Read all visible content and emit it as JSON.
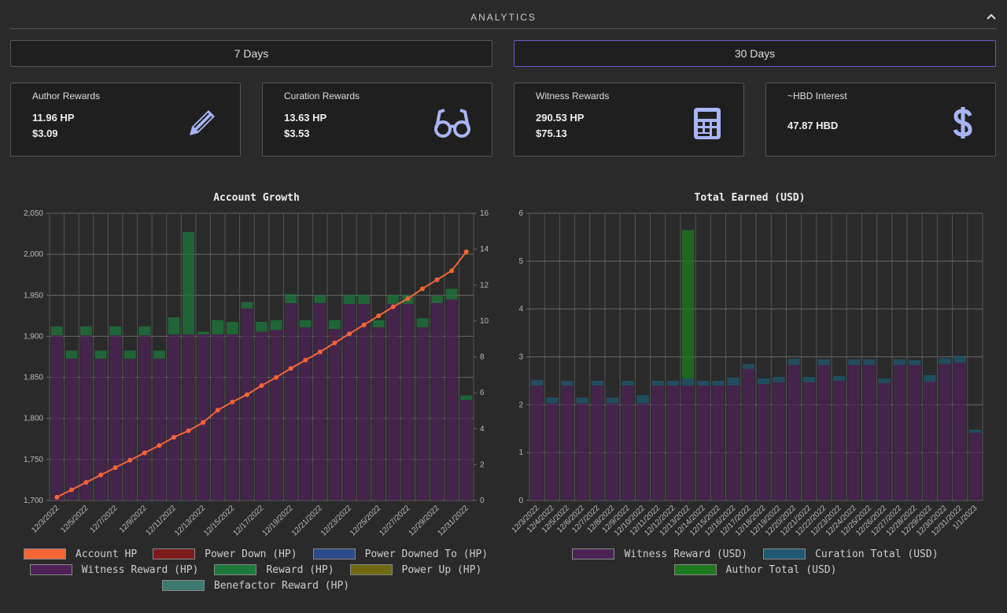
{
  "header": {
    "title": "ANALYTICS"
  },
  "buttons": [
    "7 Days",
    "30 Days"
  ],
  "cards": [
    {
      "label": "Author Rewards",
      "lines": [
        "11.96 HP",
        "$3.09"
      ]
    },
    {
      "label": "Curation Rewards",
      "lines": [
        "13.63 HP",
        "$3.53"
      ]
    },
    {
      "label": "Witness Rewards",
      "lines": [
        "290.53 HP",
        "$75.13"
      ]
    },
    {
      "label": "~HBD Interest",
      "lines": [
        "47.87 HBD"
      ]
    }
  ],
  "chart_data": [
    {
      "type": "combo",
      "title": "Account Growth",
      "stacked": true,
      "grid": true,
      "categories": [
        "12/3/2022",
        null,
        "12/5/2022",
        null,
        "12/7/2022",
        null,
        "12/9/2022",
        null,
        "12/11/2022",
        null,
        "12/13/2022",
        null,
        "12/15/2022",
        null,
        "12/17/2022",
        null,
        "12/19/2022",
        null,
        "12/21/2022",
        null,
        "12/23/2022",
        null,
        "12/25/2022",
        null,
        "12/27/2022",
        null,
        "12/29/2022",
        null,
        "12/31/2022"
      ],
      "ylim": [
        1700,
        2050
      ],
      "yticks": [
        {
          "value": 1700,
          "label": "1,700"
        },
        {
          "value": 1750,
          "label": "1,750"
        },
        {
          "value": 1800,
          "label": "1,800"
        },
        {
          "value": 1850,
          "label": "1,850"
        },
        {
          "value": 1900,
          "label": "1,900"
        },
        {
          "value": 1950,
          "label": "1,950"
        },
        {
          "value": 2000,
          "label": "2,000"
        },
        {
          "value": 2050,
          "label": "2,050"
        }
      ],
      "y2lim": [
        0,
        16
      ],
      "y2ticks": [
        0,
        2,
        4,
        6,
        8,
        10,
        12,
        14,
        16
      ],
      "series": [
        {
          "name": "Account HP",
          "type": "line",
          "color": "#f26535",
          "values": [
            1704,
            1713,
            1722,
            1731,
            1740,
            1749,
            1758,
            1767,
            1777,
            1785,
            1795,
            1810,
            1820,
            1829,
            1840,
            1850,
            1861,
            1871,
            1881,
            1892,
            1903,
            1914,
            1925,
            1936,
            1946,
            1958,
            1969,
            1980,
            2003
          ]
        },
        {
          "name": "Power Down (HP)",
          "type": "bar",
          "axis": "y2",
          "color": "#7c1c1c"
        },
        {
          "name": "Power Downed To (HP)",
          "type": "bar",
          "axis": "y2",
          "color": "#2b4b8a"
        },
        {
          "name": "Witness Reward (HP)",
          "type": "bar",
          "axis": "y2",
          "color": "#4d2357",
          "values": [
            9.2,
            7.9,
            9.2,
            7.9,
            9.2,
            7.9,
            9.2,
            7.9,
            9.25,
            9.25,
            9.25,
            9.25,
            9.25,
            10.7,
            9.4,
            9.5,
            11.0,
            9.65,
            11.0,
            9.55,
            10.95,
            10.95,
            9.65,
            10.95,
            10.95,
            9.65,
            11.0,
            11.2,
            5.6
          ]
        },
        {
          "name": "Reward (HP)",
          "type": "bar",
          "axis": "y2",
          "color": "#1e7a3c",
          "values": [
            0.5,
            0.45,
            0.5,
            0.45,
            0.5,
            0.45,
            0.5,
            0.45,
            0.95,
            5.7,
            0.15,
            0.8,
            0.7,
            0.35,
            0.55,
            0.55,
            0.5,
            0.4,
            0.45,
            0.5,
            0.5,
            0.5,
            0.4,
            0.5,
            0.5,
            0.5,
            0.4,
            0.6,
            0.25
          ]
        },
        {
          "name": "Power Up (HP)",
          "type": "bar",
          "axis": "y2",
          "color": "#6f6a12"
        },
        {
          "name": "Benefactor Reward (HP)",
          "type": "bar",
          "axis": "y2",
          "color": "#3c7a70"
        }
      ]
    },
    {
      "type": "bar",
      "title": "Total Earned (USD)",
      "stacked": true,
      "grid": true,
      "categories": [
        "12/3/2022",
        "12/4/2022",
        "12/5/2022",
        "12/6/2022",
        "12/7/2022",
        "12/8/2022",
        "12/9/2022",
        "12/10/2022",
        "12/11/2022",
        "12/12/2022",
        "12/13/2022",
        "12/14/2022",
        "12/15/2022",
        "12/16/2022",
        "12/17/2022",
        "12/18/2022",
        "12/19/2022",
        "12/20/2022",
        "12/21/2022",
        "12/22/2022",
        "12/23/2022",
        "12/24/2022",
        "12/25/2022",
        "12/26/2022",
        "12/27/2022",
        "12/28/2022",
        "12/29/2022",
        "12/30/2022",
        "12/31/2022",
        "1/1/2023"
      ],
      "ylim": [
        0,
        6
      ],
      "yticks": [
        0,
        1,
        2,
        3,
        4,
        5,
        6
      ],
      "series": [
        {
          "name": "Witness Reward (USD)",
          "color": "#4d2357",
          "values": [
            2.4,
            2.03,
            2.4,
            2.03,
            2.4,
            2.03,
            2.4,
            2.03,
            2.4,
            2.4,
            2.4,
            2.4,
            2.4,
            2.4,
            2.75,
            2.43,
            2.47,
            2.83,
            2.47,
            2.83,
            2.5,
            2.83,
            2.83,
            2.45,
            2.83,
            2.83,
            2.48,
            2.85,
            2.88,
            1.42
          ]
        },
        {
          "name": "Curation Total (USD)",
          "color": "#1f5a72",
          "values": [
            0.12,
            0.12,
            0.1,
            0.12,
            0.1,
            0.12,
            0.1,
            0.17,
            0.1,
            0.1,
            0.15,
            0.1,
            0.1,
            0.17,
            0.1,
            0.12,
            0.11,
            0.13,
            0.11,
            0.12,
            0.1,
            0.12,
            0.12,
            0.1,
            0.12,
            0.1,
            0.14,
            0.12,
            0.14,
            0.06
          ]
        },
        {
          "name": "Author Total (USD)",
          "color": "#1e7a1e",
          "values": [
            0,
            0,
            0,
            0,
            0,
            0,
            0,
            0,
            0,
            0,
            3.1,
            0,
            0,
            0,
            0,
            0,
            0,
            0,
            0,
            0,
            0,
            0,
            0,
            0,
            0,
            0,
            0,
            0,
            0,
            0
          ]
        }
      ]
    }
  ]
}
